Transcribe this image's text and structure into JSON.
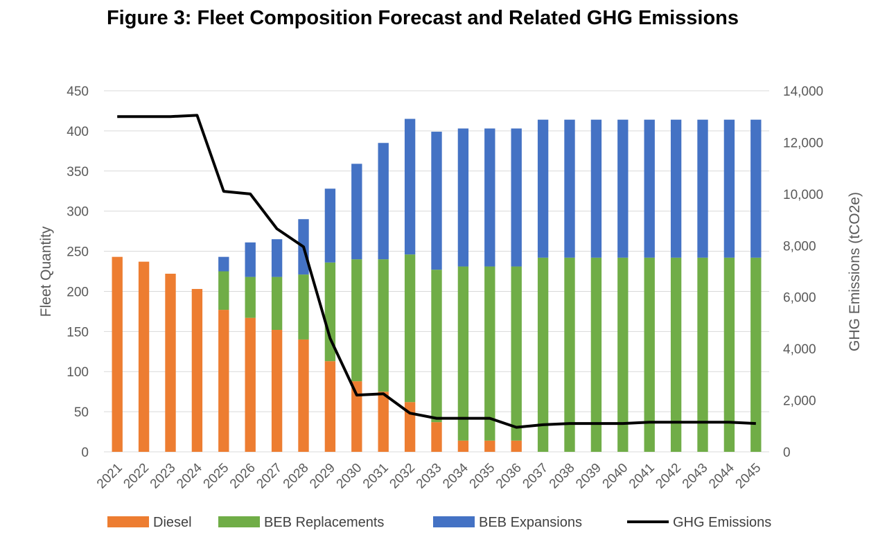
{
  "figure_title": "Figure 3: Fleet Composition Forecast and Related GHG Emissions",
  "chart_data": {
    "type": "bar",
    "stacked": true,
    "title": "Figure 3: Fleet Composition Forecast and Related GHG Emissions",
    "xlabel": "",
    "ylabel": "Fleet Quantity",
    "y2label": "GHG Emissions (tCO2e)",
    "ylim": [
      0,
      450
    ],
    "yticks": [
      0,
      50,
      100,
      150,
      200,
      250,
      300,
      350,
      400,
      450
    ],
    "y2lim": [
      0,
      14000
    ],
    "y2ticks": [
      0,
      2000,
      4000,
      6000,
      8000,
      10000,
      12000,
      14000
    ],
    "y2tick_labels": [
      "0",
      "2,000",
      "4,000",
      "6,000",
      "8,000",
      "10,000",
      "12,000",
      "14,000"
    ],
    "grid": true,
    "legend_position": "bottom",
    "categories": [
      "2021",
      "2022",
      "2023",
      "2024",
      "2025",
      "2026",
      "2027",
      "2028",
      "2029",
      "2030",
      "2031",
      "2032",
      "2033",
      "2034",
      "2035",
      "2036",
      "2037",
      "2038",
      "2039",
      "2040",
      "2041",
      "2042",
      "2043",
      "2044",
      "2045"
    ],
    "series": [
      {
        "name": "Diesel",
        "type": "bar",
        "color": "#ED7D31",
        "values": [
          243,
          237,
          222,
          203,
          177,
          167,
          152,
          140,
          113,
          88,
          75,
          62,
          37,
          14,
          14,
          14,
          0,
          0,
          0,
          0,
          0,
          0,
          0,
          0,
          0
        ]
      },
      {
        "name": "BEB Replacements",
        "type": "bar",
        "color": "#70AD47",
        "values": [
          0,
          0,
          0,
          0,
          48,
          51,
          66,
          81,
          123,
          152,
          165,
          184,
          190,
          217,
          217,
          217,
          242,
          242,
          242,
          242,
          242,
          242,
          242,
          242,
          242
        ]
      },
      {
        "name": "BEB Expansions",
        "type": "bar",
        "color": "#4472C4",
        "values": [
          0,
          0,
          0,
          0,
          18,
          43,
          47,
          69,
          92,
          119,
          145,
          169,
          172,
          172,
          172,
          172,
          172,
          172,
          172,
          172,
          172,
          172,
          172,
          172,
          172
        ]
      },
      {
        "name": "GHG Emissions",
        "type": "line",
        "axis": "secondary",
        "color": "#000000",
        "values": [
          13000,
          13000,
          13000,
          13050,
          10100,
          10000,
          8650,
          7950,
          4400,
          2200,
          2250,
          1500,
          1300,
          1300,
          1300,
          950,
          1050,
          1100,
          1100,
          1100,
          1150,
          1150,
          1150,
          1150,
          1100
        ]
      }
    ]
  }
}
